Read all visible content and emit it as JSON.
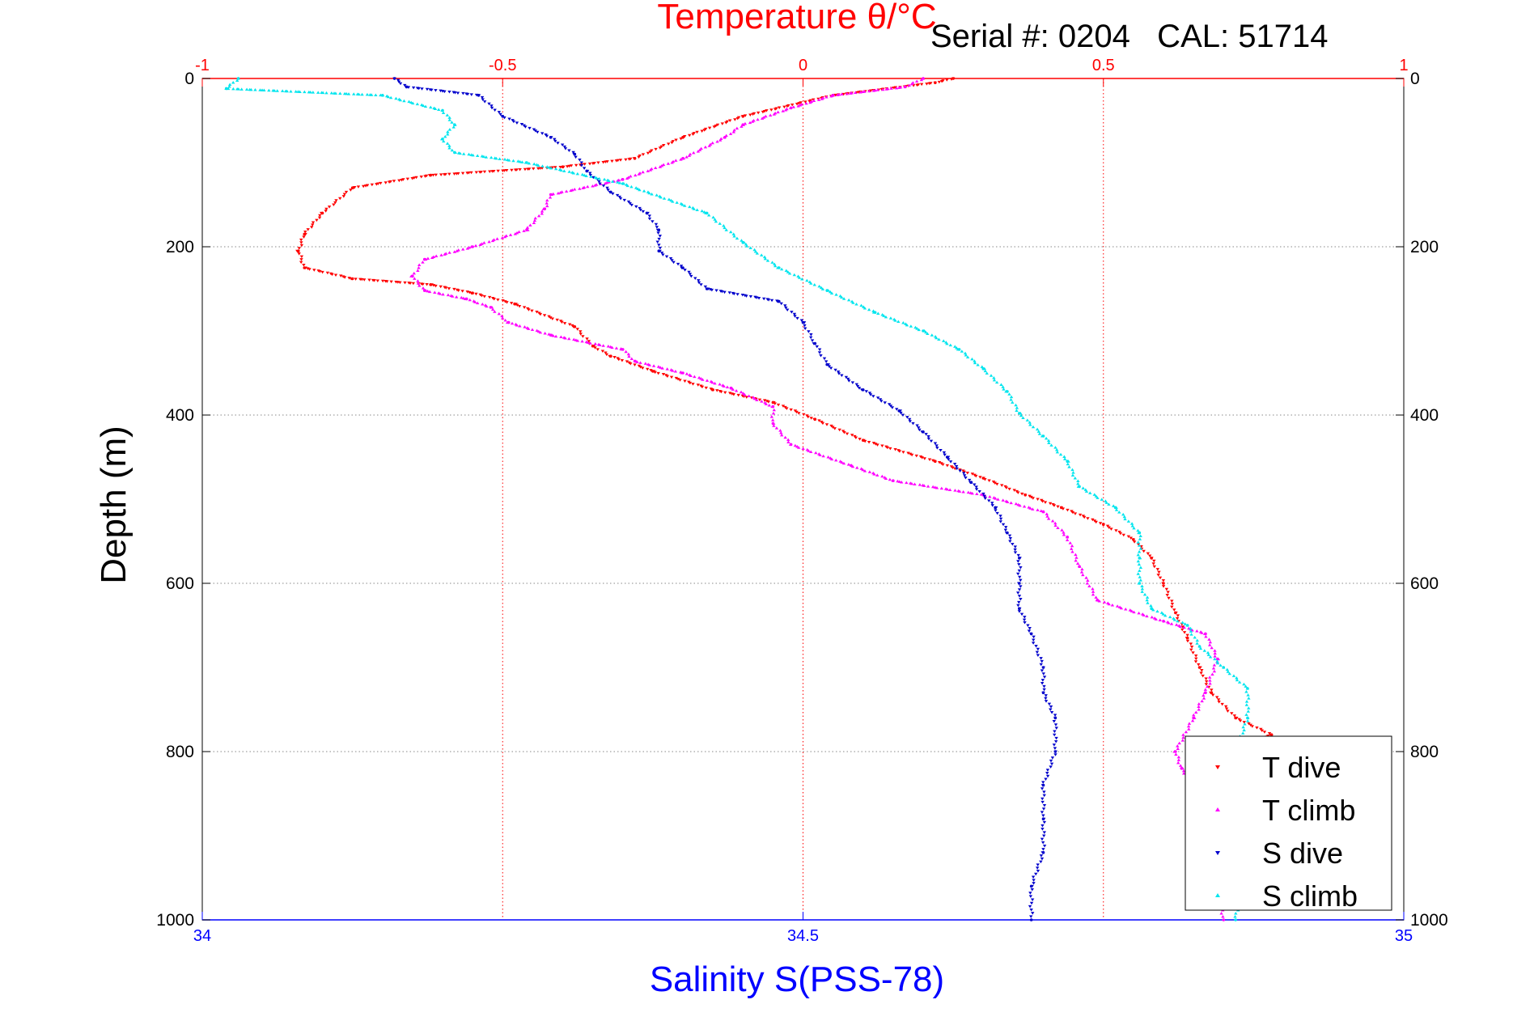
{
  "colors": {
    "t_dive": "#ff0000",
    "t_climb": "#ff00ff",
    "s_dive": "#0000cc",
    "s_climb": "#00e5ee",
    "temperature_axis": "#ff0000",
    "salinity_axis": "#0000ff",
    "grid": "#888888"
  },
  "chart_data": {
    "type": "scatter",
    "title": "Temperature θ/°C",
    "subtitle": "Serial #: 0204   CAL: 51714",
    "xlabel": "Salinity S(PSS-78)",
    "ylabel": "Depth (m)",
    "x_top_ticks": [
      "-1",
      "-0.5",
      "0",
      "0.5",
      "1"
    ],
    "x_bottom_ticks": [
      "34",
      "34.5",
      "35"
    ],
    "y_ticks": [
      "0",
      "200",
      "400",
      "600",
      "800",
      "1000"
    ],
    "temperature_range": [
      -1,
      1
    ],
    "salinity_range": [
      34,
      35
    ],
    "depth_range": [
      0,
      1000
    ],
    "y_reversed": true,
    "grid": "dotted",
    "legend_position": "bottom-right",
    "series": [
      {
        "name": "T dive",
        "axis": "temperature",
        "points": [
          [
            0.25,
            0
          ],
          [
            0.22,
            5
          ],
          [
            0.05,
            20
          ],
          [
            -0.1,
            45
          ],
          [
            -0.2,
            70
          ],
          [
            -0.28,
            95
          ],
          [
            -0.4,
            105
          ],
          [
            -0.62,
            115
          ],
          [
            -0.75,
            130
          ],
          [
            -0.8,
            160
          ],
          [
            -0.83,
            185
          ],
          [
            -0.84,
            205
          ],
          [
            -0.83,
            225
          ],
          [
            -0.75,
            238
          ],
          [
            -0.62,
            245
          ],
          [
            -0.55,
            255
          ],
          [
            -0.48,
            268
          ],
          [
            -0.38,
            295
          ],
          [
            -0.35,
            318
          ],
          [
            -0.32,
            330
          ],
          [
            -0.25,
            348
          ],
          [
            -0.15,
            370
          ],
          [
            -0.05,
            385
          ],
          [
            0.02,
            405
          ],
          [
            0.1,
            430
          ],
          [
            0.22,
            455
          ],
          [
            0.3,
            475
          ],
          [
            0.37,
            495
          ],
          [
            0.43,
            510
          ],
          [
            0.5,
            530
          ],
          [
            0.55,
            548
          ],
          [
            0.58,
            570
          ],
          [
            0.6,
            600
          ],
          [
            0.62,
            635
          ],
          [
            0.64,
            665
          ],
          [
            0.66,
            700
          ],
          [
            0.68,
            730
          ],
          [
            0.72,
            760
          ],
          [
            0.78,
            780
          ],
          [
            0.7,
            800
          ]
        ]
      },
      {
        "name": "T climb",
        "axis": "temperature",
        "points": [
          [
            0.2,
            0
          ],
          [
            0.17,
            10
          ],
          [
            0.05,
            20
          ],
          [
            -0.02,
            35
          ],
          [
            -0.1,
            55
          ],
          [
            -0.13,
            70
          ],
          [
            -0.2,
            95
          ],
          [
            -0.3,
            120
          ],
          [
            -0.42,
            138
          ],
          [
            -0.43,
            155
          ],
          [
            -0.46,
            180
          ],
          [
            -0.55,
            200
          ],
          [
            -0.63,
            215
          ],
          [
            -0.65,
            235
          ],
          [
            -0.63,
            252
          ],
          [
            -0.56,
            262
          ],
          [
            -0.52,
            272
          ],
          [
            -0.49,
            290
          ],
          [
            -0.42,
            305
          ],
          [
            -0.3,
            322
          ],
          [
            -0.28,
            336
          ],
          [
            -0.2,
            350
          ],
          [
            -0.12,
            368
          ],
          [
            -0.05,
            390
          ],
          [
            -0.05,
            410
          ],
          [
            -0.02,
            435
          ],
          [
            0.08,
            460
          ],
          [
            0.15,
            478
          ],
          [
            0.3,
            495
          ],
          [
            0.4,
            515
          ],
          [
            0.44,
            545
          ],
          [
            0.46,
            580
          ],
          [
            0.49,
            620
          ],
          [
            0.6,
            645
          ],
          [
            0.67,
            660
          ],
          [
            0.69,
            690
          ],
          [
            0.67,
            730
          ],
          [
            0.65,
            760
          ],
          [
            0.62,
            800
          ],
          [
            0.63,
            820
          ],
          [
            0.66,
            850
          ],
          [
            0.68,
            900
          ],
          [
            0.7,
            1000
          ]
        ]
      },
      {
        "name": "S dive",
        "axis": "salinity",
        "points": [
          [
            34.16,
            0
          ],
          [
            34.17,
            10
          ],
          [
            34.23,
            20
          ],
          [
            34.25,
            45
          ],
          [
            34.29,
            70
          ],
          [
            34.31,
            90
          ],
          [
            34.32,
            110
          ],
          [
            34.34,
            135
          ],
          [
            34.37,
            160
          ],
          [
            34.38,
            180
          ],
          [
            34.38,
            205
          ],
          [
            34.4,
            225
          ],
          [
            34.42,
            250
          ],
          [
            34.48,
            265
          ],
          [
            34.5,
            290
          ],
          [
            34.51,
            315
          ],
          [
            34.52,
            340
          ],
          [
            34.55,
            370
          ],
          [
            34.58,
            395
          ],
          [
            34.6,
            420
          ],
          [
            34.62,
            450
          ],
          [
            34.64,
            480
          ],
          [
            34.66,
            510
          ],
          [
            34.67,
            540
          ],
          [
            34.68,
            570
          ],
          [
            34.68,
            600
          ],
          [
            34.68,
            630
          ],
          [
            34.69,
            660
          ],
          [
            34.7,
            700
          ],
          [
            34.7,
            730
          ],
          [
            34.71,
            760
          ],
          [
            34.71,
            800
          ],
          [
            34.7,
            840
          ],
          [
            34.7,
            880
          ],
          [
            34.7,
            920
          ],
          [
            34.69,
            960
          ],
          [
            34.69,
            1000
          ]
        ]
      },
      {
        "name": "S climb",
        "axis": "salinity",
        "points": [
          [
            34.03,
            0
          ],
          [
            34.02,
            12
          ],
          [
            34.15,
            20
          ],
          [
            34.2,
            38
          ],
          [
            34.21,
            55
          ],
          [
            34.2,
            72
          ],
          [
            34.21,
            88
          ],
          [
            34.27,
            100
          ],
          [
            34.35,
            125
          ],
          [
            34.42,
            160
          ],
          [
            34.45,
            195
          ],
          [
            34.48,
            225
          ],
          [
            34.52,
            252
          ],
          [
            34.56,
            278
          ],
          [
            34.6,
            300
          ],
          [
            34.63,
            322
          ],
          [
            34.65,
            345
          ],
          [
            34.67,
            372
          ],
          [
            34.68,
            398
          ],
          [
            34.7,
            425
          ],
          [
            34.72,
            455
          ],
          [
            34.73,
            485
          ],
          [
            34.76,
            510
          ],
          [
            34.78,
            540
          ],
          [
            34.78,
            570
          ],
          [
            34.78,
            600
          ],
          [
            34.79,
            630
          ],
          [
            34.82,
            650
          ],
          [
            34.83,
            675
          ],
          [
            34.85,
            700
          ],
          [
            34.87,
            725
          ],
          [
            34.87,
            760
          ],
          [
            34.86,
            800
          ],
          [
            34.87,
            830
          ],
          [
            34.88,
            860
          ],
          [
            34.87,
            900
          ],
          [
            34.86,
            1000
          ]
        ]
      }
    ]
  }
}
